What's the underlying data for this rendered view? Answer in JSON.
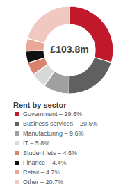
{
  "chart_data": {
    "type": "pie",
    "title": "Rent by sector",
    "annotation": "£103.8m",
    "categories": [
      "Government – 29.6%",
      "Business services – 20.6%",
      "Manufacturing – 9.6%",
      "IT – 5.8%",
      "Student lets – 4.6%",
      "Finance – 4.4%",
      "Retail – 4.7%",
      "Other – 20.7%"
    ],
    "values": [
      29.6,
      20.6,
      9.6,
      5.8,
      4.6,
      4.4,
      4.7,
      20.7
    ],
    "colors": [
      "#c0192c",
      "#606060",
      "#a0a0a0",
      "#d8d8d8",
      "#d9836e",
      "#111111",
      "#e8a898",
      "#f0c8c0"
    ],
    "legend": "bottom"
  }
}
